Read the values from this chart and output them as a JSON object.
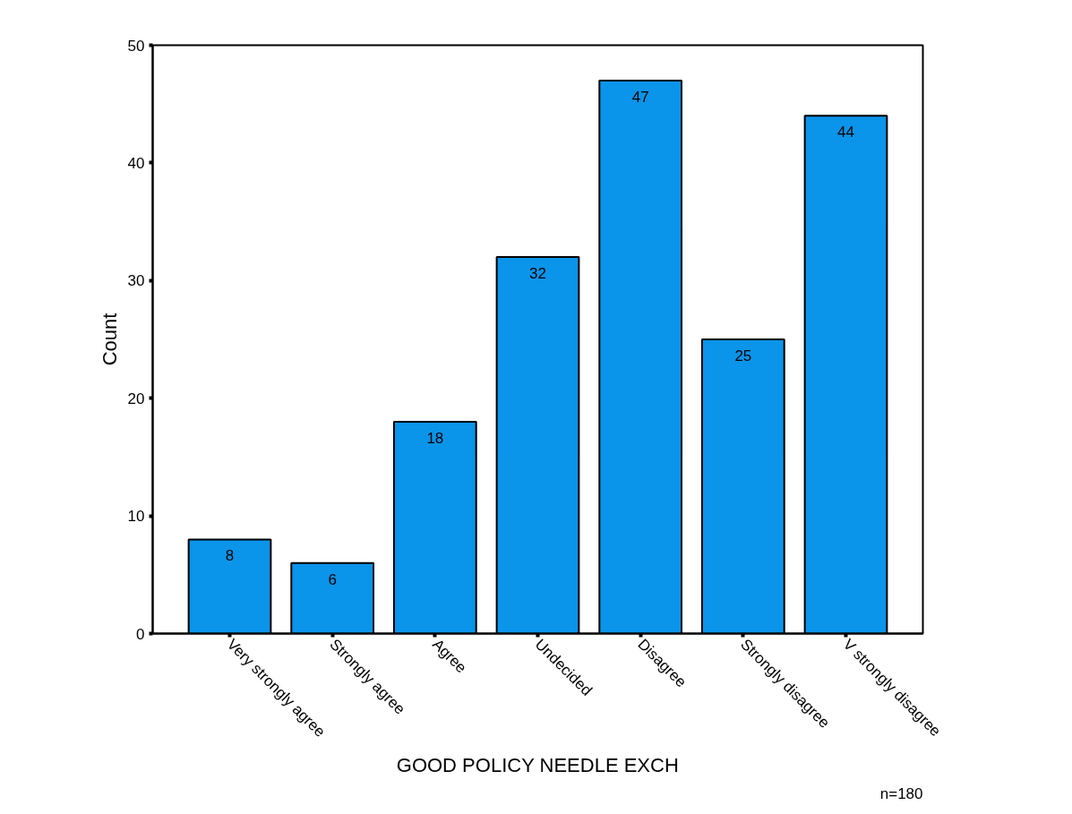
{
  "chart_data": {
    "type": "bar",
    "xlabel": "GOOD POLICY NEEDLE EXCH",
    "ylabel": "Count",
    "categories": [
      "Very strongly agree",
      "Strongly agree",
      "Agree",
      "Undecided",
      "Disagree",
      "Strongly disagree",
      "V strongly disagree"
    ],
    "values": [
      8,
      6,
      18,
      32,
      47,
      25,
      44
    ],
    "color": "#0a94ea",
    "ylim": [
      0,
      50
    ],
    "yticks": [
      0,
      10,
      20,
      30,
      40,
      50
    ],
    "data_labels": true,
    "grid": false,
    "annotations": [
      "n=180"
    ]
  }
}
